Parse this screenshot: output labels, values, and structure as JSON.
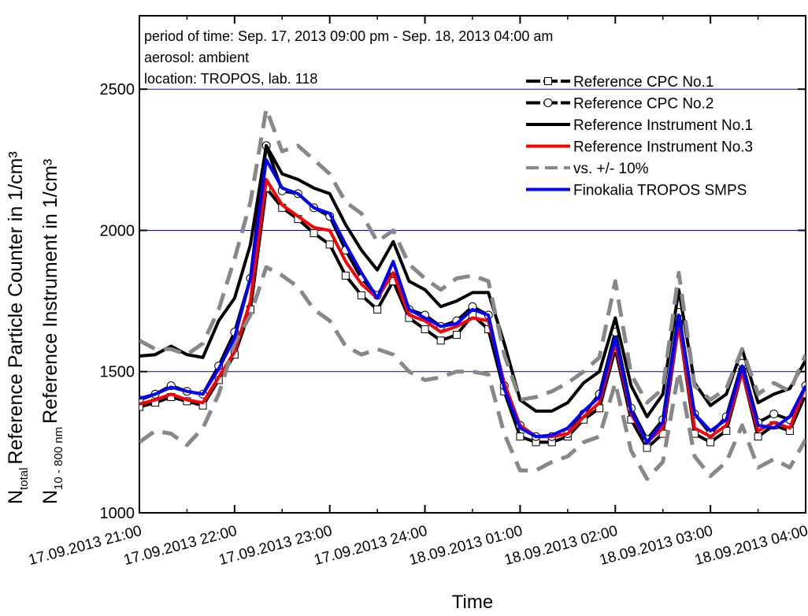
{
  "chart_data": {
    "type": "line",
    "x_label": "Time",
    "y_labels": [
      {
        "symbol": "N",
        "subscript": "total",
        "text": "Reference Particle Counter in 1/cm³"
      },
      {
        "symbol": "N",
        "subscript": "10 - 800 nm",
        "text": "Reference Instrument in 1/cm³"
      }
    ],
    "annotations": [
      "period of time: Sep. 17, 2013 09:00 pm - Sep. 18, 2013 04:00 am",
      "aerosol: ambient",
      "location: TROPOS, lab. 118"
    ],
    "x": [
      "17.09.2013 21:00",
      "17.09.2013 21:10",
      "17.09.2013 21:20",
      "17.09.2013 21:30",
      "17.09.2013 21:40",
      "17.09.2013 21:50",
      "17.09.2013 22:00",
      "17.09.2013 22:10",
      "17.09.2013 22:20",
      "17.09.2013 22:30",
      "17.09.2013 22:40",
      "17.09.2013 22:50",
      "17.09.2013 23:00",
      "17.09.2013 23:10",
      "17.09.2013 23:20",
      "17.09.2013 23:30",
      "17.09.2013 23:40",
      "17.09.2013 23:50",
      "17.09.2013 24:00",
      "18.09.2013 00:10",
      "18.09.2013 00:20",
      "18.09.2013 00:30",
      "18.09.2013 00:40",
      "18.09.2013 00:50",
      "18.09.2013 01:00",
      "18.09.2013 01:10",
      "18.09.2013 01:20",
      "18.09.2013 01:30",
      "18.09.2013 01:40",
      "18.09.2013 01:50",
      "18.09.2013 02:00",
      "18.09.2013 02:10",
      "18.09.2013 02:20",
      "18.09.2013 02:30",
      "18.09.2013 02:40",
      "18.09.2013 02:50",
      "18.09.2013 03:00",
      "18.09.2013 03:10",
      "18.09.2013 03:20",
      "18.09.2013 03:30",
      "18.09.2013 03:40",
      "18.09.2013 03:50",
      "18.09.2013 04:00"
    ],
    "xtick_every": 6,
    "ylim": [
      1000,
      2760
    ],
    "yticks": [
      1000,
      1500,
      2000,
      2500
    ],
    "grid": true,
    "grid_color": "#0000cc",
    "legend": "upper right",
    "series": [
      {
        "name": "Reference CPC No.1",
        "color": "#000000",
        "dash": "dash",
        "marker": "square",
        "values": [
          1375,
          1390,
          1410,
          1395,
          1380,
          1470,
          1560,
          1720,
          2150,
          2080,
          2040,
          1990,
          1950,
          1840,
          1770,
          1720,
          1820,
          1690,
          1650,
          1610,
          1630,
          1700,
          1650,
          1430,
          1270,
          1250,
          1250,
          1270,
          1330,
          1370,
          1580,
          1330,
          1230,
          1280,
          1670,
          1280,
          1250,
          1290,
          1500,
          1270,
          1310,
          1290,
          1420
        ]
      },
      {
        "name": "Reference CPC No.2",
        "color": "#000000",
        "dash": "dash",
        "marker": "circle",
        "values": [
          1400,
          1420,
          1450,
          1430,
          1420,
          1520,
          1640,
          1830,
          2300,
          2140,
          2130,
          2080,
          2050,
          1930,
          1830,
          1770,
          1860,
          1720,
          1700,
          1660,
          1680,
          1730,
          1700,
          1450,
          1310,
          1270,
          1270,
          1280,
          1350,
          1420,
          1640,
          1370,
          1260,
          1330,
          1710,
          1350,
          1280,
          1340,
          1530,
          1320,
          1350,
          1330,
          1450
        ]
      },
      {
        "name": "Reference Instrument No.1",
        "color": "#000000",
        "values": [
          1555,
          1560,
          1590,
          1560,
          1550,
          1680,
          1760,
          1950,
          2300,
          2200,
          2180,
          2150,
          2130,
          2020,
          1930,
          1860,
          1960,
          1820,
          1790,
          1730,
          1750,
          1780,
          1780,
          1600,
          1400,
          1360,
          1360,
          1390,
          1460,
          1500,
          1690,
          1450,
          1340,
          1420,
          1790,
          1460,
          1380,
          1420,
          1580,
          1390,
          1420,
          1440,
          1540
        ]
      },
      {
        "name": "Reference Instrument No.3",
        "color": "#ff0000",
        "values": [
          1385,
          1400,
          1420,
          1400,
          1390,
          1480,
          1570,
          1750,
          2180,
          2090,
          2050,
          2010,
          2000,
          1890,
          1810,
          1760,
          1850,
          1700,
          1680,
          1640,
          1660,
          1690,
          1680,
          1460,
          1310,
          1270,
          1270,
          1280,
          1340,
          1390,
          1600,
          1350,
          1250,
          1300,
          1670,
          1300,
          1270,
          1310,
          1500,
          1290,
          1320,
          1300,
          1450
        ]
      },
      {
        "name": "vs. +/- 10%",
        "color": "#888888",
        "dash": "wide",
        "values": [
          1610,
          1580,
          1580,
          1560,
          1600,
          1720,
          1900,
          2100,
          2430,
          2280,
          2300,
          2250,
          2200,
          2100,
          2060,
          1960,
          2000,
          1880,
          1830,
          1790,
          1830,
          1840,
          1820,
          1560,
          1400,
          1410,
          1430,
          1460,
          1500,
          1550,
          1820,
          1490,
          1390,
          1440,
          1850,
          1450,
          1400,
          1440,
          1580,
          1420,
          1460,
          1430,
          1560
        ],
        "values_lower": [
          1250,
          1290,
          1280,
          1240,
          1300,
          1420,
          1600,
          1700,
          1870,
          1840,
          1800,
          1720,
          1680,
          1590,
          1560,
          1580,
          1560,
          1500,
          1470,
          1480,
          1500,
          1500,
          1490,
          1280,
          1150,
          1150,
          1180,
          1200,
          1250,
          1270,
          1460,
          1220,
          1120,
          1180,
          1500,
          1200,
          1130,
          1180,
          1310,
          1160,
          1190,
          1160,
          1260
        ]
      },
      {
        "name": "Finokalia TROPOS SMPS",
        "color": "#0000ff",
        "values": [
          1405,
          1420,
          1445,
          1430,
          1420,
          1510,
          1620,
          1830,
          2250,
          2150,
          2130,
          2080,
          2060,
          1950,
          1850,
          1760,
          1890,
          1720,
          1690,
          1660,
          1670,
          1720,
          1700,
          1440,
          1300,
          1270,
          1275,
          1300,
          1360,
          1410,
          1620,
          1360,
          1250,
          1320,
          1700,
          1350,
          1290,
          1330,
          1520,
          1310,
          1300,
          1340,
          1450
        ]
      }
    ]
  }
}
